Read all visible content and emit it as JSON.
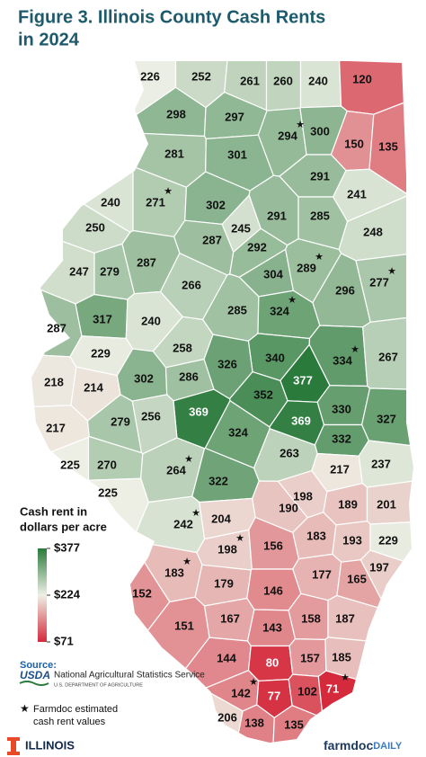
{
  "title": [
    "Figure 3. Illinois County Cash Rents",
    "in 2024"
  ],
  "legend": {
    "title": [
      "Cash rent in",
      "dollars per acre"
    ],
    "stops": [
      {
        "value": 377,
        "label": "$377",
        "color": "#2a7a3b"
      },
      {
        "value": 224,
        "label": "$224",
        "color": "#eef0e6"
      },
      {
        "value": 71,
        "label": "$71",
        "color": "#d42a3c"
      }
    ]
  },
  "counties": [
    {
      "value": 226
    },
    {
      "value": 252
    },
    {
      "value": 261
    },
    {
      "value": 260
    },
    {
      "value": 240
    },
    {
      "value": 120
    },
    {
      "value": 298
    },
    {
      "value": 297
    },
    {
      "value": 294,
      "estimated": true
    },
    {
      "value": 300
    },
    {
      "value": 150
    },
    {
      "value": 135
    },
    {
      "value": 281
    },
    {
      "value": 301
    },
    {
      "value": 291
    },
    {
      "value": 241
    },
    {
      "value": 240
    },
    {
      "value": 271,
      "estimated": true
    },
    {
      "value": 302
    },
    {
      "value": 245
    },
    {
      "value": 291
    },
    {
      "value": 285
    },
    {
      "value": 250
    },
    {
      "value": 287
    },
    {
      "value": 292
    },
    {
      "value": 248
    },
    {
      "value": 247
    },
    {
      "value": 279
    },
    {
      "value": 287
    },
    {
      "value": 266
    },
    {
      "value": 304
    },
    {
      "value": 289,
      "estimated": true
    },
    {
      "value": 296
    },
    {
      "value": 277,
      "estimated": true
    },
    {
      "value": 287
    },
    {
      "value": 317
    },
    {
      "value": 240
    },
    {
      "value": 285
    },
    {
      "value": 324,
      "estimated": true
    },
    {
      "value": 229
    },
    {
      "value": 258
    },
    {
      "value": 340
    },
    {
      "value": 334,
      "estimated": true
    },
    {
      "value": 267
    },
    {
      "value": 218
    },
    {
      "value": 214
    },
    {
      "value": 302
    },
    {
      "value": 286
    },
    {
      "value": 326
    },
    {
      "value": 377
    },
    {
      "value": 352
    },
    {
      "value": 369
    },
    {
      "value": 217
    },
    {
      "value": 279
    },
    {
      "value": 256
    },
    {
      "value": 330
    },
    {
      "value": 327
    },
    {
      "value": 369
    },
    {
      "value": 324
    },
    {
      "value": 332
    },
    {
      "value": 263
    },
    {
      "value": 225
    },
    {
      "value": 270
    },
    {
      "value": 264,
      "estimated": true
    },
    {
      "value": 217
    },
    {
      "value": 237
    },
    {
      "value": 322
    },
    {
      "value": 225
    },
    {
      "value": 198
    },
    {
      "value": 190
    },
    {
      "value": 189
    },
    {
      "value": 201
    },
    {
      "value": 242,
      "estimated": true
    },
    {
      "value": 204
    },
    {
      "value": 183
    },
    {
      "value": 193
    },
    {
      "value": 229
    },
    {
      "value": 198,
      "estimated": true
    },
    {
      "value": 156
    },
    {
      "value": 183,
      "estimated": true
    },
    {
      "value": 177
    },
    {
      "value": 197
    },
    {
      "value": 165
    },
    {
      "value": 179
    },
    {
      "value": 146
    },
    {
      "value": 152
    },
    {
      "value": 167
    },
    {
      "value": 158
    },
    {
      "value": 187
    },
    {
      "value": 151
    },
    {
      "value": 143
    },
    {
      "value": 144
    },
    {
      "value": 80
    },
    {
      "value": 157
    },
    {
      "value": 142,
      "estimated": true
    },
    {
      "value": 77
    },
    {
      "value": 102
    },
    {
      "value": 71,
      "estimated": true
    },
    {
      "value": 185
    },
    {
      "value": 206
    },
    {
      "value": 138
    },
    {
      "value": 135
    }
  ],
  "source": {
    "label": "Source:",
    "logo": "USDA",
    "agency": "National Agricultural Statistics Service",
    "department": "U.S. DEPARTMENT OF AGRICULTURE"
  },
  "note": [
    "Farmdoc estimated",
    "cash rent values"
  ],
  "footer": {
    "left": "ILLINOIS",
    "right": [
      "farmdoc",
      "DAILY"
    ]
  }
}
